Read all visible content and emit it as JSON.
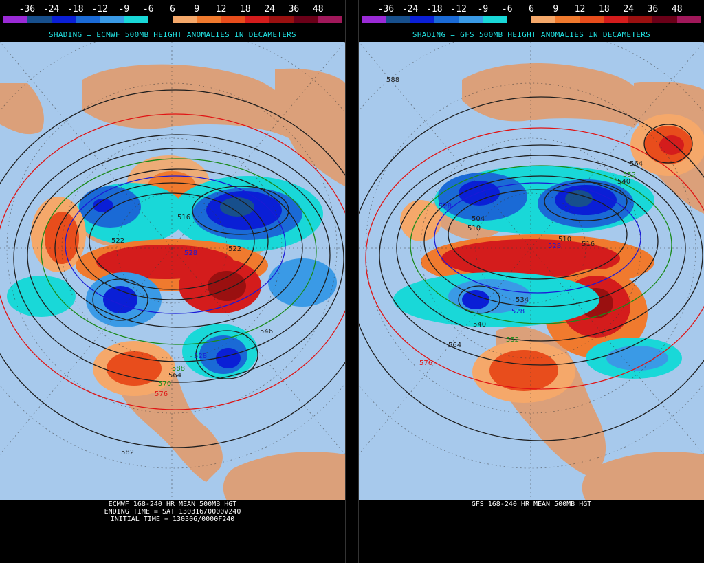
{
  "legend": {
    "ticks": [
      "-36",
      "-24",
      "-18",
      "-12",
      "-9",
      "-6",
      "6",
      "9",
      "12",
      "18",
      "24",
      "36",
      "48"
    ],
    "colors": [
      "#9a2ad6",
      "#174f8c",
      "#0a1fd6",
      "#1a6ad6",
      "#3a9ae6",
      "#19d8d8",
      "#000000",
      "#f5a86a",
      "#f07a2e",
      "#e84d1c",
      "#d41c1c",
      "#9a1010",
      "#6a0018",
      "#a0185a"
    ]
  },
  "colors": {
    "ocean": "#a7c9ec",
    "land": "#dba07a",
    "border": "#8a3a16",
    "contour": "#1e1e1e",
    "contour_green": "#1a8a1a",
    "contour_blue": "#1a1ad6",
    "contour_red": "#e01414",
    "title": "#22e0e0",
    "caption": "#ffffff"
  },
  "left": {
    "title": "SHADING = ECMWF 500MB HEIGHT ANOMALIES IN DECAMETERS",
    "caption": [
      "ECMWF 168-240 HR MEAN 500MB HGT",
      "ENDING TIME = SAT 130316/0000V240",
      "INITIAL TIME = 130306/0000F240"
    ],
    "contour_labels": [
      "522",
      "516",
      "528",
      "522",
      "528",
      "546",
      "588",
      "564",
      "570",
      "576",
      "582"
    ]
  },
  "right": {
    "title": "SHADING = GFS 500MB HEIGHT ANOMALIES IN DECAMETERS",
    "caption": [
      "GFS 168-240 HR MEAN 500MB HGT"
    ],
    "contour_labels": [
      "588",
      "528",
      "504",
      "510",
      "528",
      "516",
      "540",
      "552",
      "564",
      "534",
      "528",
      "564",
      "576",
      "540",
      "552",
      "510"
    ]
  }
}
